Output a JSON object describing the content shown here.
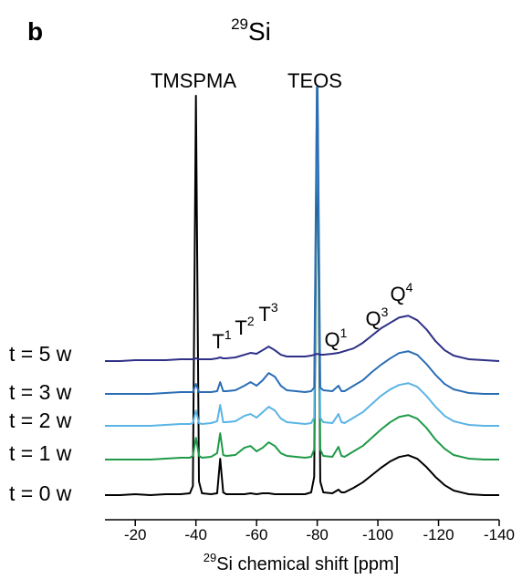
{
  "chart_data": {
    "type": "line",
    "panel_label": "b",
    "title": {
      "sup": "29",
      "text": "Si"
    },
    "x_label": {
      "sup": "29",
      "text": "Si chemical shift [ppm]"
    },
    "peak_labels": [
      "TMSPMA",
      "TEOS"
    ],
    "annotations": [
      {
        "text": "T",
        "sup": "1"
      },
      {
        "text": "T",
        "sup": "2"
      },
      {
        "text": "T",
        "sup": "3"
      },
      {
        "text": "Q",
        "sup": "1"
      },
      {
        "text": "Q",
        "sup": "3"
      },
      {
        "text": "Q",
        "sup": "4"
      }
    ],
    "xlim": [
      -10,
      -140
    ],
    "xticks": [
      -20,
      -40,
      -60,
      -80,
      -100,
      -120,
      -140
    ],
    "ylim": [
      0,
      450
    ],
    "x": [
      -10,
      -15,
      -20,
      -25,
      -30,
      -35,
      -38,
      -39,
      -40,
      -41,
      -42,
      -45,
      -47,
      -48,
      -49,
      -50,
      -53,
      -56,
      -58,
      -60,
      -62,
      -64,
      -66,
      -68,
      -70,
      -73,
      -76,
      -78,
      -79,
      -80,
      -81,
      -82,
      -85,
      -87,
      -88,
      -89,
      -92,
      -95,
      -98,
      -101,
      -104,
      -107,
      -110,
      -113,
      -116,
      -119,
      -122,
      -125,
      -130,
      -135,
      -140
    ],
    "series": [
      {
        "name": "t = 0 w",
        "color": "#000000",
        "values": [
          0,
          0,
          1,
          0,
          1,
          1,
          2,
          10,
          440,
          15,
          2,
          1,
          2,
          40,
          3,
          1,
          1,
          1,
          2,
          1,
          2,
          2,
          1,
          1,
          1,
          1,
          1,
          3,
          20,
          440,
          15,
          3,
          2,
          6,
          3,
          3,
          8,
          14,
          22,
          30,
          37,
          42,
          44,
          40,
          31,
          20,
          11,
          5,
          1,
          0,
          0
        ]
      },
      {
        "name": "t = 1 w",
        "color": "#1f9a48",
        "values": [
          1,
          1,
          1,
          1,
          2,
          3,
          3,
          5,
          25,
          5,
          3,
          4,
          8,
          30,
          6,
          5,
          6,
          14,
          16,
          10,
          14,
          20,
          16,
          8,
          5,
          4,
          3,
          4,
          12,
          430,
          12,
          5,
          4,
          15,
          5,
          4,
          10,
          16,
          25,
          34,
          42,
          48,
          50,
          46,
          36,
          23,
          13,
          6,
          2,
          1,
          1
        ]
      },
      {
        "name": "t = 2 w",
        "color": "#5ab4e5",
        "values": [
          1,
          1,
          1,
          1,
          2,
          3,
          3,
          4,
          18,
          4,
          3,
          4,
          6,
          24,
          5,
          5,
          6,
          12,
          14,
          10,
          16,
          22,
          18,
          9,
          5,
          4,
          3,
          4,
          10,
          400,
          10,
          5,
          4,
          14,
          5,
          4,
          10,
          16,
          25,
          34,
          41,
          46,
          48,
          44,
          34,
          22,
          12,
          6,
          2,
          1,
          1
        ]
      },
      {
        "name": "t = 3 w",
        "color": "#2a6db5",
        "values": [
          1,
          1,
          1,
          1,
          2,
          3,
          3,
          3,
          12,
          3,
          3,
          3,
          4,
          14,
          4,
          4,
          5,
          10,
          14,
          10,
          16,
          24,
          20,
          10,
          5,
          4,
          3,
          4,
          8,
          380,
          8,
          5,
          4,
          10,
          4,
          4,
          10,
          16,
          25,
          33,
          40,
          46,
          48,
          44,
          34,
          22,
          12,
          6,
          2,
          1,
          1
        ]
      },
      {
        "name": "t = 5 w",
        "color": "#2e2f86",
        "values": [
          0,
          0,
          1,
          1,
          1,
          2,
          2,
          2,
          3,
          2,
          2,
          2,
          3,
          4,
          3,
          3,
          4,
          7,
          9,
          8,
          12,
          16,
          12,
          7,
          5,
          5,
          5,
          6,
          7,
          8,
          7,
          7,
          8,
          9,
          10,
          11,
          14,
          20,
          28,
          36,
          42,
          48,
          50,
          45,
          35,
          22,
          12,
          6,
          2,
          1,
          0
        ]
      }
    ]
  }
}
